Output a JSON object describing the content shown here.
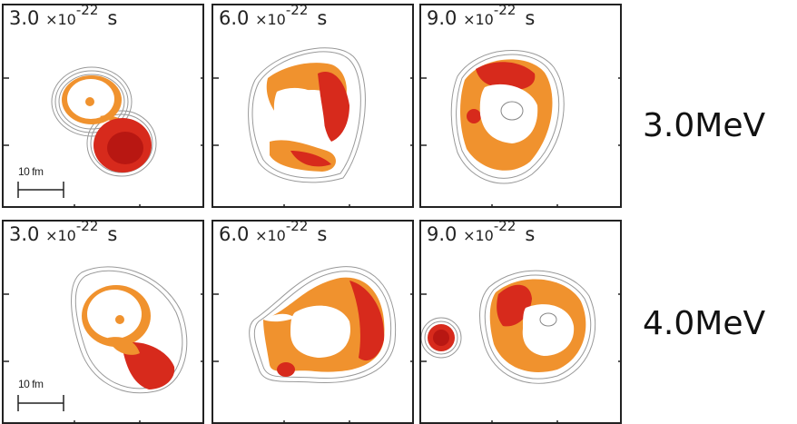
{
  "rows": [
    {
      "energy_label": "3.0MeV",
      "panels": [
        {
          "time": "3.0",
          "mul": "×10",
          "exp": "-22",
          "unit": "s",
          "scale_label": "10 fm"
        },
        {
          "time": "6.0",
          "mul": "×10",
          "exp": "-22",
          "unit": "s"
        },
        {
          "time": "9.0",
          "mul": "×10",
          "exp": "-22",
          "unit": "s"
        }
      ]
    },
    {
      "energy_label": "4.0MeV",
      "panels": [
        {
          "time": "3.0",
          "mul": "×10",
          "exp": "-22",
          "unit": "s",
          "scale_label": "10 fm"
        },
        {
          "time": "6.0",
          "mul": "×10",
          "exp": "-22",
          "unit": "s"
        },
        {
          "time": "9.0",
          "mul": "×10",
          "exp": "-22",
          "unit": "s"
        }
      ]
    }
  ],
  "colors": {
    "frame": "#222222",
    "contour": "#9a9a9a",
    "density_low": "#f0922e",
    "density_high": "#d72a1c",
    "density_peak": "#b81712"
  }
}
